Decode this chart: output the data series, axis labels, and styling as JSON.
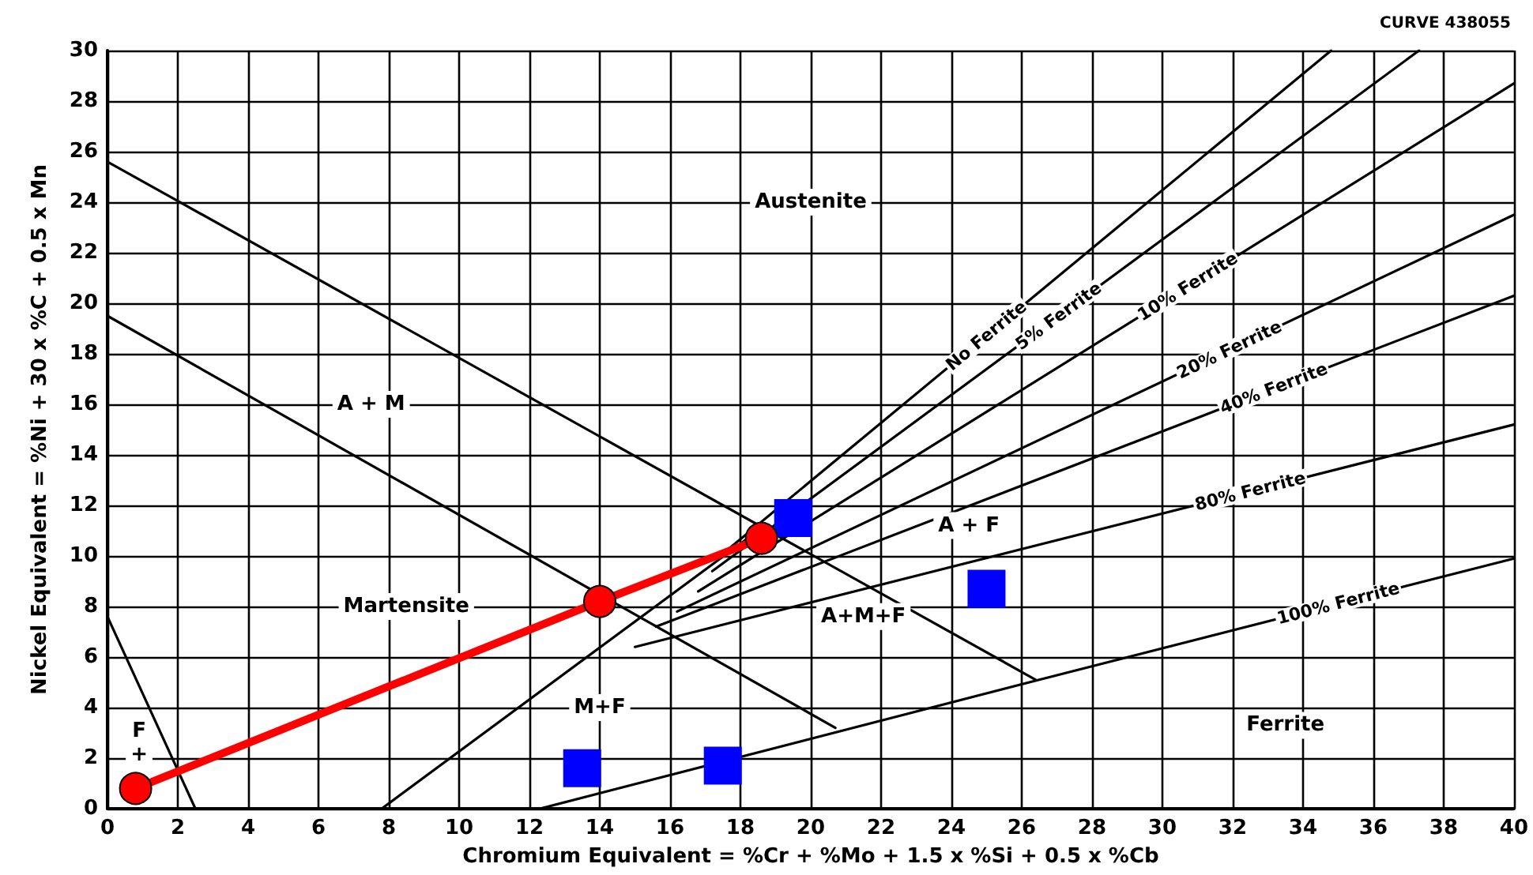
{
  "chart_data": {
    "type": "line",
    "xlabel": "Chromium Equivalent = %Cr + %Mo + 1.5 x %Si + 0.5 x %Cb",
    "ylabel": "Nickel Equivalent = %Ni + 30 x %C + 0.5 x Mn",
    "xlim": [
      0,
      40
    ],
    "xticks": [
      0,
      2,
      4,
      6,
      8,
      10,
      12,
      14,
      16,
      18,
      20,
      22,
      24,
      26,
      28,
      30,
      32,
      34,
      36,
      38,
      40
    ],
    "ylim": [
      0,
      30
    ],
    "yticks": [
      0,
      2,
      4,
      6,
      8,
      10,
      12,
      14,
      16,
      18,
      20,
      22,
      24,
      26,
      28,
      30
    ],
    "grid": true,
    "legend": false,
    "series": [
      {
        "color": "#000000",
        "marker": "none",
        "x": [
          0,
          26.4
        ],
        "values": [
          25.6,
          5.1
        ]
      },
      {
        "color": "#000000",
        "marker": "none",
        "x": [
          0,
          20.7
        ],
        "values": [
          19.5,
          3.2
        ]
      },
      {
        "color": "#000000",
        "marker": "none",
        "x": [
          0,
          2.5
        ],
        "values": [
          7.6,
          0
        ]
      },
      {
        "color": "#000000",
        "marker": "none",
        "x": [
          7.8,
          18.5
        ],
        "values": [
          0,
          11
        ]
      },
      {
        "name": "No Ferrite",
        "color": "#000000",
        "marker": "none",
        "x": [
          17.6,
          34.8
        ],
        "values": [
          10.2,
          30
        ]
      },
      {
        "name": "5% Ferrite",
        "color": "#000000",
        "marker": "none",
        "x": [
          17.2,
          37.3
        ],
        "values": [
          9.4,
          30
        ]
      },
      {
        "name": "10% Ferrite",
        "color": "#000000",
        "marker": "none",
        "x": [
          16.8,
          40
        ],
        "values": [
          8.6,
          28.7
        ]
      },
      {
        "name": "20% Ferrite",
        "color": "#000000",
        "marker": "none",
        "x": [
          16.2,
          40
        ],
        "values": [
          7.8,
          23.5
        ]
      },
      {
        "name": "40% Ferrite",
        "color": "#000000",
        "marker": "none",
        "x": [
          15.6,
          40
        ],
        "values": [
          7.2,
          20.3
        ]
      },
      {
        "name": "80% Ferrite",
        "color": "#000000",
        "marker": "none",
        "x": [
          15.0,
          40
        ],
        "values": [
          6.4,
          15.2
        ]
      },
      {
        "name": "100% Ferrite",
        "color": "#000000",
        "marker": "none",
        "x": [
          12.3,
          26.5,
          40
        ],
        "values": [
          0,
          5.1,
          9.9
        ]
      },
      {
        "type": "scatter",
        "color": "#0000ff",
        "marker": "square",
        "x": [
          19.5,
          25,
          13.5,
          17.5
        ],
        "values": [
          11.5,
          8.7,
          1.6,
          1.7
        ]
      },
      {
        "color": "#ff0000",
        "marker": "circle",
        "x": [
          0.8,
          14,
          18.6
        ],
        "values": [
          0.8,
          8.2,
          10.7
        ]
      }
    ],
    "annotations": [
      "CURVE 438055",
      "Austenite",
      "A + M",
      "Martensite",
      "M+F",
      "A+M+F",
      "A + F",
      "Ferrite",
      "F\n+"
    ]
  }
}
